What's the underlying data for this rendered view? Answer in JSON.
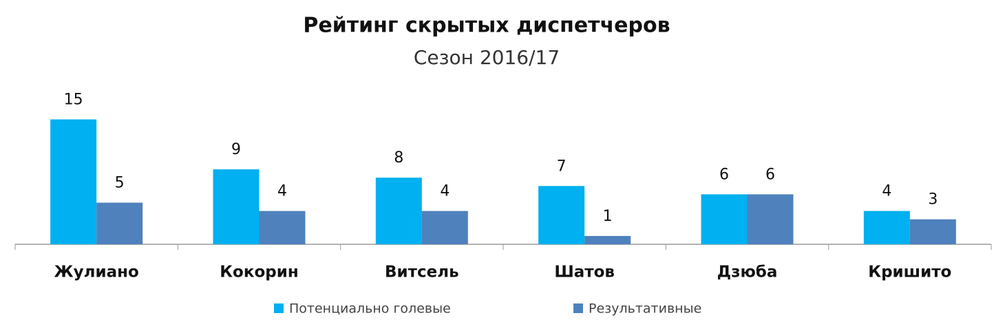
{
  "chart_data": {
    "type": "bar",
    "title": "Рейтинг скрытых диспетчеров",
    "subtitle": "Сезон 2016/17",
    "categories": [
      "Жулиано",
      "Кокорин",
      "Витсель",
      "Шатов",
      "Дзюба",
      "Кришито"
    ],
    "series": [
      {
        "name": "Потенциально голевые",
        "color": "#00b0f0",
        "values": [
          15,
          9,
          8,
          7,
          6,
          4
        ]
      },
      {
        "name": "Результативные",
        "color": "#4f81bd",
        "values": [
          5,
          4,
          4,
          1,
          6,
          3
        ]
      }
    ]
  }
}
